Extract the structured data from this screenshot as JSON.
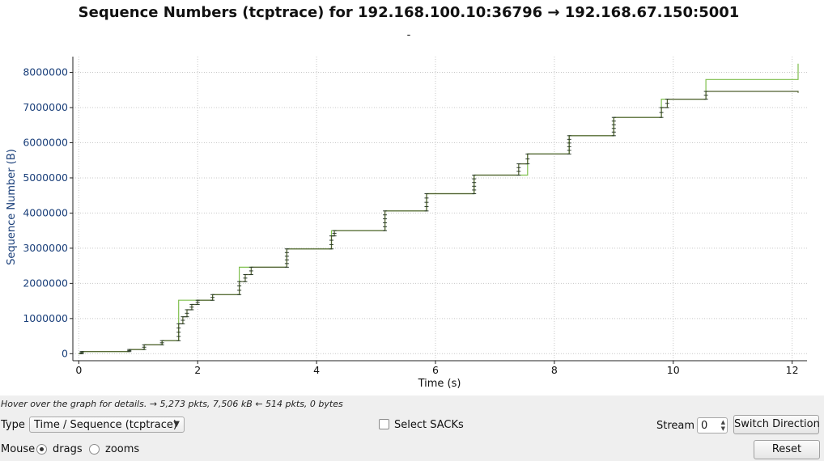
{
  "chart_data": {
    "type": "line",
    "title": "Sequence Numbers (tcptrace) for 192.168.100.10:36796 → 192.168.67.150:5001",
    "subtitle": "-",
    "xlabel": "Time (s)",
    "ylabel": "Sequence Number (B)",
    "xlim": [
      -0.1,
      12.25
    ],
    "ylim": [
      -200000,
      8450000
    ],
    "x_ticks": [
      "0",
      "2",
      "4",
      "6",
      "8",
      "10",
      "12"
    ],
    "x_tick_values": [
      0,
      2,
      4,
      6,
      8,
      10,
      12
    ],
    "y_ticks": [
      "0",
      "1000000",
      "2000000",
      "3000000",
      "4000000",
      "5000000",
      "6000000",
      "7000000",
      "8000000"
    ],
    "y_tick_values": [
      0,
      1000000,
      2000000,
      3000000,
      4000000,
      5000000,
      6000000,
      7000000,
      8000000
    ],
    "grid": true,
    "series": [
      {
        "color": "#7fbf4d",
        "x": [
          0,
          0.05,
          0.05,
          0.85,
          0.85,
          1.1,
          1.1,
          1.4,
          1.4,
          1.68,
          1.68,
          2.25,
          2.25,
          2.7,
          2.7,
          3.5,
          3.5,
          4.25,
          4.25,
          5.15,
          5.15,
          5.85,
          5.85,
          6.65,
          6.65,
          7.55,
          7.55,
          8.25,
          8.25,
          9.0,
          9.0,
          9.8,
          9.8,
          10.55,
          10.55,
          12.1,
          12.1
        ],
        "y": [
          0,
          0,
          60000,
          60000,
          120000,
          120000,
          250000,
          250000,
          370000,
          370000,
          1520000,
          1520000,
          1680000,
          1680000,
          2460000,
          2460000,
          2980000,
          2980000,
          3500000,
          3500000,
          4060000,
          4060000,
          4550000,
          4550000,
          5080000,
          5080000,
          5680000,
          5680000,
          6200000,
          6200000,
          6720000,
          6720000,
          7240000,
          7240000,
          7800000,
          7800000,
          8250000
        ]
      },
      {
        "color": "#4f5f2f",
        "x": [
          0,
          0.05,
          0.05,
          0.85,
          0.85,
          1.1,
          1.1,
          1.4,
          1.4,
          1.68,
          1.68,
          1.75,
          1.75,
          1.82,
          1.82,
          1.9,
          1.9,
          2.0,
          2.0,
          2.25,
          2.25,
          2.7,
          2.7,
          2.8,
          2.8,
          2.9,
          2.9,
          3.5,
          3.5,
          4.25,
          4.25,
          4.3,
          4.3,
          5.15,
          5.15,
          5.85,
          5.85,
          6.65,
          6.65,
          7.4,
          7.4,
          7.55,
          7.55,
          8.25,
          8.25,
          9.0,
          9.0,
          9.8,
          9.8,
          9.9,
          9.9,
          10.55,
          10.55,
          12.1,
          12.1
        ],
        "y": [
          0,
          0,
          60000,
          60000,
          120000,
          120000,
          250000,
          250000,
          370000,
          370000,
          850000,
          850000,
          1050000,
          1050000,
          1250000,
          1250000,
          1400000,
          1400000,
          1520000,
          1520000,
          1680000,
          1680000,
          2050000,
          2050000,
          2250000,
          2250000,
          2460000,
          2460000,
          2980000,
          2980000,
          3350000,
          3350000,
          3500000,
          3500000,
          4060000,
          4060000,
          4550000,
          4550000,
          5080000,
          5080000,
          5400000,
          5400000,
          5680000,
          5680000,
          6200000,
          6200000,
          6720000,
          6720000,
          7000000,
          7000000,
          7240000,
          7240000,
          7460000,
          7460000,
          7420000
        ]
      }
    ]
  },
  "status": {
    "text": "Hover over the graph for details. → 5,273 pkts, 7,506 kB ← 514 pkts, 0 bytes"
  },
  "controls": {
    "type_label": "Type",
    "type_value": "Time / Sequence (tcptrace)",
    "select_sacks_label": "Select SACKs",
    "select_sacks_checked": false,
    "stream_label": "Stream",
    "stream_value": "0",
    "switch_direction_label": "Switch Direction",
    "mouse_label": "Mouse",
    "drags_label": "drags",
    "zooms_label": "zooms",
    "mouse_mode": "drags",
    "reset_label": "Reset"
  }
}
